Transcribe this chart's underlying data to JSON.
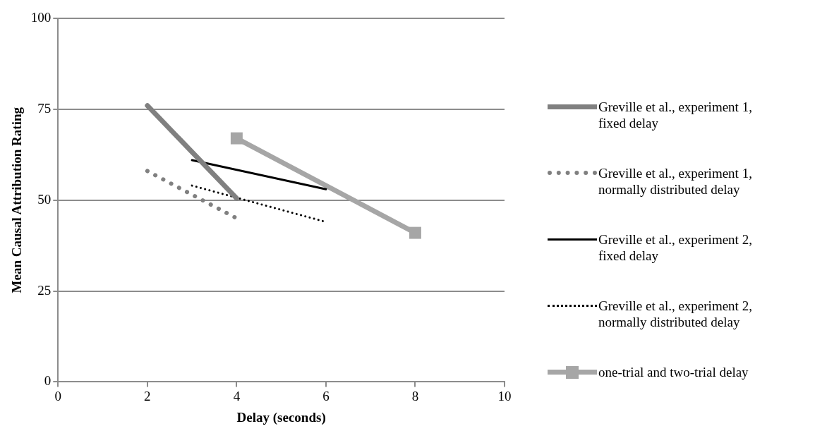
{
  "chart_data": {
    "type": "line",
    "xlabel": "Delay (seconds)",
    "ylabel": "Mean Causal Attribution Rating",
    "xlim": [
      0,
      10
    ],
    "xticks": [
      0,
      2,
      4,
      6,
      8,
      10
    ],
    "ylim": [
      0,
      100
    ],
    "yticks": [
      0,
      25,
      50,
      75,
      100
    ],
    "grid": "y",
    "legend": "right",
    "series": [
      {
        "name": "Greville et al., experiment 1, fixed delay",
        "color": "#808080",
        "x": [
          2,
          4
        ],
        "values": [
          76,
          50.5
        ],
        "line_style": "solid",
        "marker": "none"
      },
      {
        "name": "Greville et al., experiment 1, normally distributed delay",
        "color": "#808080",
        "x": [
          2,
          4
        ],
        "values": [
          58,
          45
        ],
        "line_style": "dotted",
        "marker": "none"
      },
      {
        "name": "Greville et al., experiment 2, fixed delay",
        "color": "#000000",
        "x": [
          3,
          6
        ],
        "values": [
          61,
          53
        ],
        "line_style": "solid",
        "marker": "none"
      },
      {
        "name": "Greville et al., experiment 2, normally distributed delay",
        "color": "#000000",
        "x": [
          3,
          6
        ],
        "values": [
          54,
          44
        ],
        "line_style": "dotted",
        "marker": "none"
      },
      {
        "name": "one-trial and two-trial delay",
        "color": "#a6a6a6",
        "x": [
          4,
          8
        ],
        "values": [
          67,
          41
        ],
        "line_style": "solid",
        "marker": "square"
      }
    ]
  }
}
